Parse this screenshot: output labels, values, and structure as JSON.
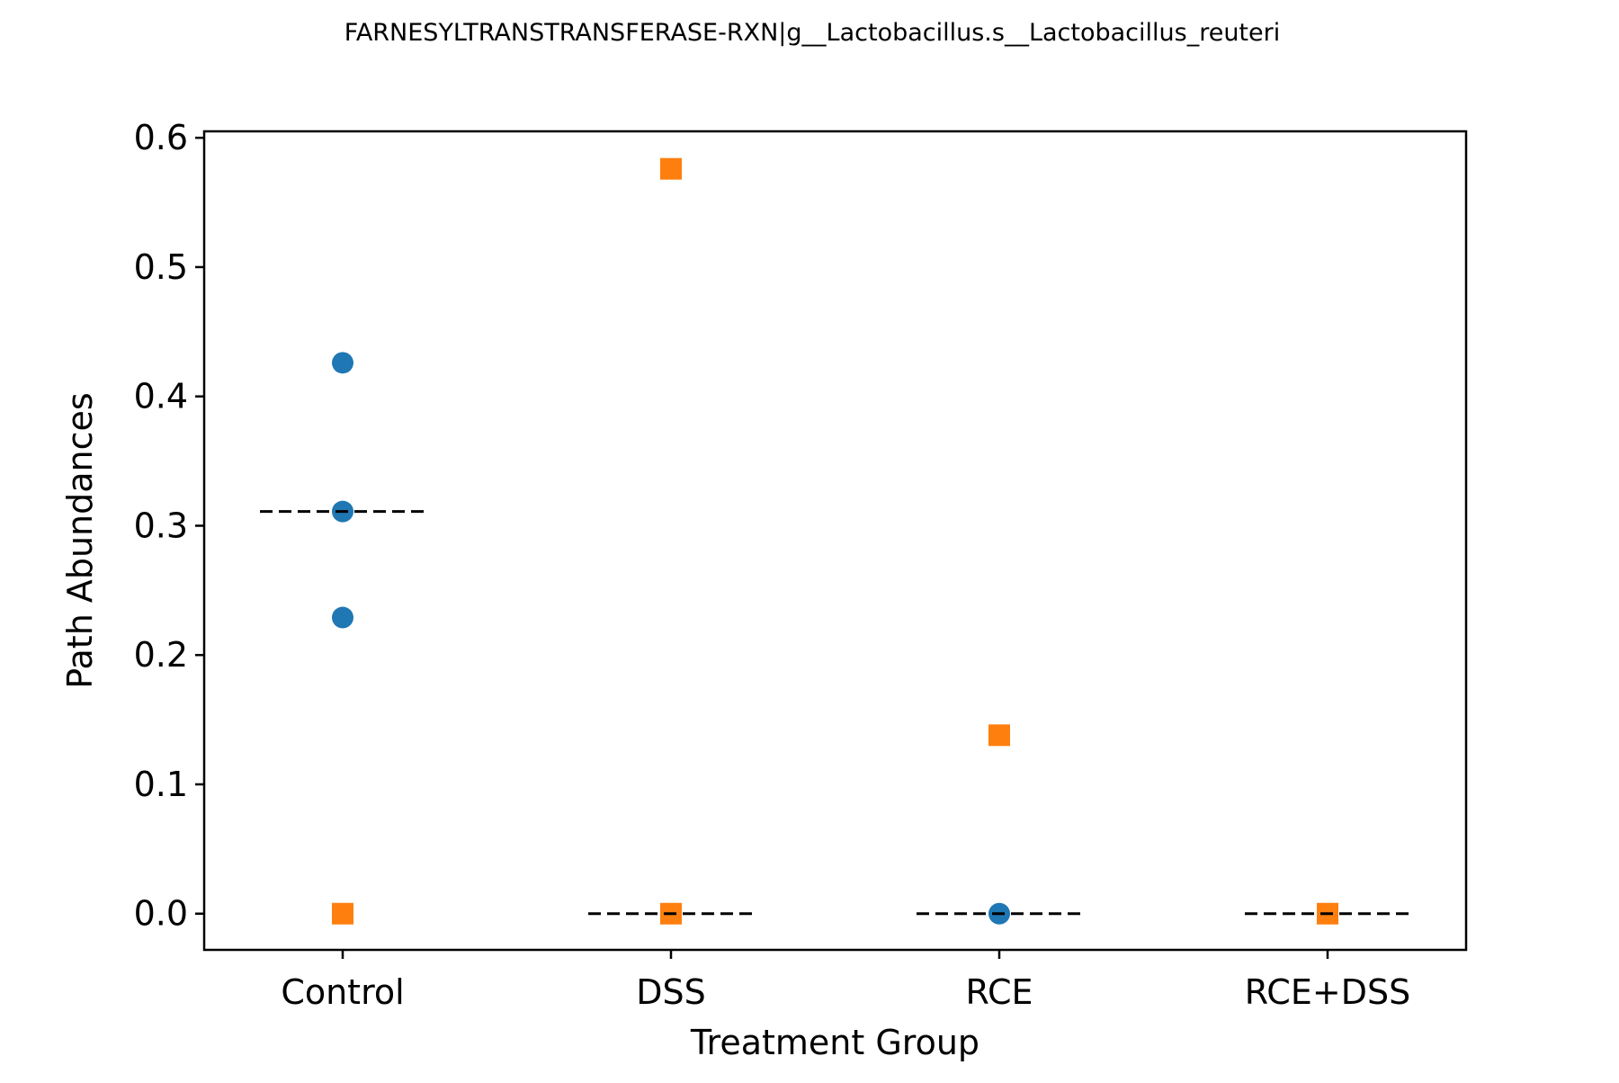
{
  "chart_data": {
    "type": "scatter",
    "title": "FARNESYLTRANSTRANSFERASE-RXN|g__Lactobacillus.s__Lactobacillus_reuteri",
    "xlabel": "Treatment Group",
    "ylabel": "Path Abundances",
    "categories": [
      "Control",
      "DSS",
      "RCE",
      "RCE+DSS"
    ],
    "ylim": [
      -0.028,
      0.605
    ],
    "yticks": [
      0.0,
      0.1,
      0.2,
      0.3,
      0.4,
      0.5,
      0.6
    ],
    "ytick_labels": [
      "0.0",
      "0.1",
      "0.2",
      "0.3",
      "0.4",
      "0.5",
      "0.6"
    ],
    "grid": false,
    "legend": "none",
    "series": [
      {
        "marker": "circle",
        "color": "#1f77b4",
        "points": [
          {
            "category": "Control",
            "y": 0.426
          },
          {
            "category": "Control",
            "y": 0.311
          },
          {
            "category": "Control",
            "y": 0.229
          },
          {
            "category": "RCE",
            "y": 0.0
          }
        ]
      },
      {
        "marker": "square",
        "color": "#ff7f0e",
        "points": [
          {
            "category": "Control",
            "y": 0.0
          },
          {
            "category": "DSS",
            "y": 0.576
          },
          {
            "category": "DSS",
            "y": 0.0
          },
          {
            "category": "RCE",
            "y": 0.138
          },
          {
            "category": "RCE+DSS",
            "y": 0.0
          }
        ]
      }
    ],
    "median_lines": [
      {
        "category": "Control",
        "y": 0.311
      },
      {
        "category": "DSS",
        "y": 0.0
      },
      {
        "category": "RCE",
        "y": 0.0
      },
      {
        "category": "RCE+DSS",
        "y": 0.0
      }
    ],
    "median_line_color": "#000000",
    "median_line_style": "dashed"
  }
}
